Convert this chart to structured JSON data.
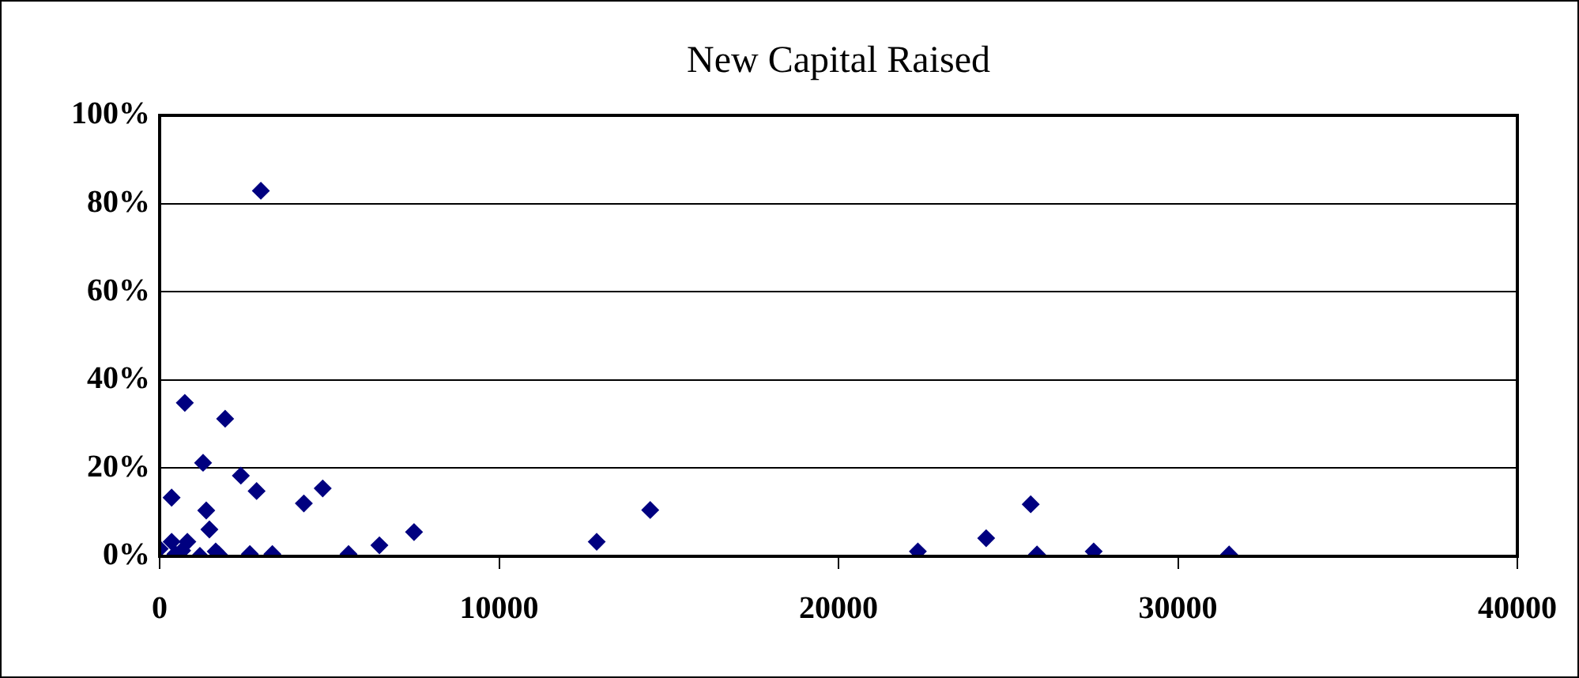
{
  "chart_data": {
    "type": "scatter",
    "title": "New Capital Raised",
    "x": [
      0,
      742,
      1930,
      1280,
      2393,
      2857,
      4805,
      4249,
      353,
      1373,
      1466,
      353,
      816,
      663,
      464,
      1187,
      1651,
      1744,
      2658,
      3321,
      5566,
      6475,
      7495,
      2982,
      12876,
      14453,
      22338,
      24350,
      25663,
      25848,
      27518,
      31508
    ],
    "series": [
      {
        "color": "#000080",
        "values": [
          1.7,
          34.8,
          31.2,
          21.2,
          18.3,
          14.8,
          15.4,
          12.0,
          13.3,
          10.4,
          6.1,
          3.3,
          3.3,
          1.3,
          0.5,
          0.1,
          1.1,
          0.4,
          0.5,
          0.5,
          0.5,
          2.5,
          5.5,
          82.9,
          3.3,
          10.5,
          1.1,
          4.1,
          11.8,
          0.4,
          1.1,
          0.4
        ]
      }
    ],
    "xlim": [
      0,
      40000
    ],
    "xticks": [
      0,
      10000,
      20000,
      30000,
      40000
    ],
    "ylim": [
      0,
      100
    ],
    "yticks": [
      {
        "value": 0,
        "label": "0%"
      },
      {
        "value": 20,
        "label": "20%"
      },
      {
        "value": 40,
        "label": "40%"
      },
      {
        "value": 60,
        "label": "60%"
      },
      {
        "value": 80,
        "label": "80%"
      },
      {
        "value": 100,
        "label": "100%"
      }
    ],
    "grid": "y",
    "legend": false,
    "marker": "diamond"
  }
}
